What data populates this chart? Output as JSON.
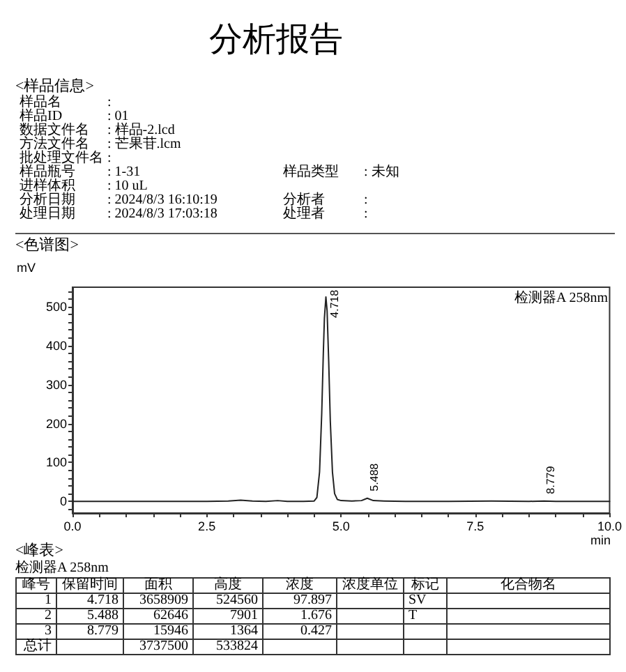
{
  "chart_data": {
    "type": "line",
    "title": "分析报告",
    "xlabel": "min",
    "ylabel": "mV",
    "x": [
      0,
      0.5,
      1,
      1.5,
      2,
      2.5,
      2.9,
      3.13,
      3.35,
      3.6,
      3.82,
      4.0,
      4.3,
      4.5,
      4.55,
      4.6,
      4.64,
      4.67,
      4.69,
      4.718,
      4.74,
      4.77,
      4.8,
      4.84,
      4.88,
      4.93,
      5.0,
      5.2,
      5.38,
      5.488,
      5.6,
      5.8,
      6.2,
      7.0,
      7.8,
      8.5,
      8.779,
      9.0,
      9.5,
      10
    ],
    "values": [
      0,
      0,
      0,
      0,
      0,
      0,
      1,
      3,
      1,
      0,
      2,
      0,
      0,
      1,
      10,
      76,
      225,
      381,
      470,
      525,
      490,
      360,
      206,
      75,
      20,
      5,
      2,
      1,
      2,
      8,
      2,
      1,
      0,
      0,
      1,
      0,
      1,
      0,
      0,
      0
    ],
    "color": "#222222",
    "marker": "none",
    "xlim": [
      0,
      10
    ],
    "ylim": [
      -30,
      550
    ],
    "xticks": [
      {
        "value": 0,
        "label": "0.0"
      },
      {
        "value": 0.5,
        "label": null
      },
      {
        "value": 1,
        "label": null
      },
      {
        "value": 1.5,
        "label": null
      },
      {
        "value": 2,
        "label": null
      },
      2.5,
      {
        "value": 3,
        "label": null
      },
      {
        "value": 3.5,
        "label": null
      },
      {
        "value": 4,
        "label": null
      },
      {
        "value": 4.5,
        "label": null
      },
      {
        "value": 5,
        "label": "5.0"
      },
      {
        "value": 5.5,
        "label": null
      },
      {
        "value": 6,
        "label": null
      },
      {
        "value": 6.5,
        "label": null
      },
      {
        "value": 7,
        "label": null
      },
      7.5,
      {
        "value": 8,
        "label": null
      },
      {
        "value": 8.5,
        "label": null
      },
      {
        "value": 9,
        "label": null
      },
      {
        "value": 9.5,
        "label": null
      },
      {
        "value": 10,
        "label": "10.0"
      }
    ],
    "yticks": [
      {
        "value": -20,
        "label": null
      },
      0,
      {
        "value": 20,
        "label": null
      },
      {
        "value": 40,
        "label": null
      },
      {
        "value": 60,
        "label": null
      },
      {
        "value": 80,
        "label": null
      },
      100,
      {
        "value": 120,
        "label": null
      },
      {
        "value": 140,
        "label": null
      },
      {
        "value": 160,
        "label": null
      },
      {
        "value": 180,
        "label": null
      },
      200,
      {
        "value": 220,
        "label": null
      },
      {
        "value": 240,
        "label": null
      },
      {
        "value": 260,
        "label": null
      },
      {
        "value": 280,
        "label": null
      },
      300,
      {
        "value": 320,
        "label": null
      },
      {
        "value": 340,
        "label": null
      },
      {
        "value": 360,
        "label": null
      },
      {
        "value": 380,
        "label": null
      },
      400,
      {
        "value": 420,
        "label": null
      },
      {
        "value": 440,
        "label": null
      },
      {
        "value": 460,
        "label": null
      },
      {
        "value": 480,
        "label": null
      },
      500,
      {
        "value": 520,
        "label": null
      },
      {
        "value": 540,
        "label": null
      }
    ],
    "annotations": [
      "<样品信息>",
      "样品名",
      ":",
      "样品ID",
      ": 01",
      "数据文件名",
      ": 样品-2.lcd",
      "方法文件名",
      ": 芒果苷.lcm",
      "批处理文件名",
      ":",
      "样品瓶号",
      ": 1-31",
      "样品类型",
      ": 未知",
      "进样体积",
      ": 10 uL",
      "分析日期",
      ": 2024/8/3 16:10:19",
      "分析者",
      ":",
      "处理日期",
      ": 2024/8/3 17:03:18",
      "处理者",
      ":",
      "<色谱图>",
      "检测器A 258nm",
      {
        "text": "4.718",
        "x": 4.718,
        "y": 525
      },
      {
        "text": "5.488",
        "x": 5.488,
        "y": 8
      },
      {
        "text": "8.779",
        "x": 8.779,
        "y": 1
      },
      "<峰表>",
      "检测器A 258nm",
      "峰号",
      "保留时间",
      "面积",
      "高度",
      "浓度",
      "浓度单位",
      "标记",
      "化合物名",
      "1",
      "4.718",
      "3658909",
      "524560",
      "97.897",
      "SV",
      "2",
      "5.488",
      "62646",
      "7901",
      "1.676",
      "T",
      "3",
      "8.779",
      "15946",
      "1364",
      "0.427",
      "总计",
      "3737500",
      "533824"
    ]
  }
}
